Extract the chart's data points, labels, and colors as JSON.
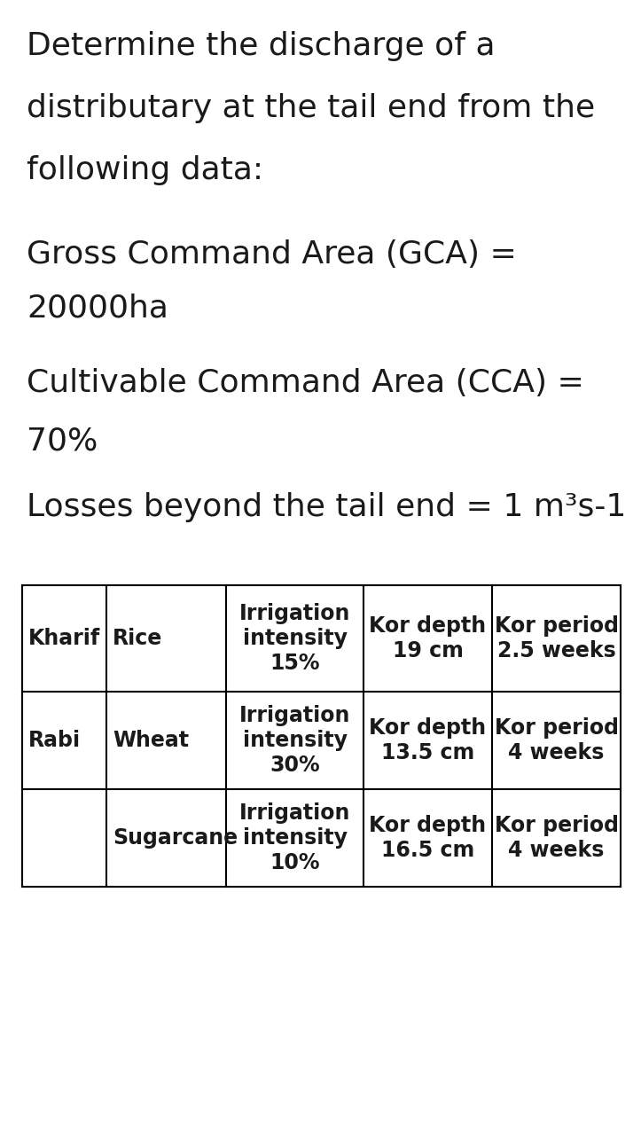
{
  "background_color": "#ffffff",
  "text_color": "#1a1a1a",
  "title_lines": [
    "Determine the discharge of a",
    "distributary at the tail end from the",
    "following data:"
  ],
  "param_blocks": [
    [
      "Gross Command Area (GCA) =",
      "20000ha"
    ],
    [
      "Cultivable Command Area (CCA) =",
      "70%"
    ],
    [
      "Losses beyond the tail end = 1 m³s-1"
    ]
  ],
  "table": {
    "col1": [
      "Kharif",
      "Rabi",
      ""
    ],
    "col2": [
      "Rice",
      "Wheat",
      "Sugarcane"
    ],
    "col3": [
      "Irrigation\nintensity\n15%",
      "Irrigation\nintensity\n30%",
      "Irrigation\nintensity\n10%"
    ],
    "col4": [
      "Kor depth\n19 cm",
      "Kor depth\n13.5 cm",
      "Kor depth\n16.5 cm"
    ],
    "col5": [
      "Kor period\n2.5 weeks",
      "Kor period\n4 weeks",
      "Kor period\n4 weeks"
    ]
  },
  "font_size_text": 26,
  "font_size_table": 17,
  "font_family": "DejaVu Sans"
}
